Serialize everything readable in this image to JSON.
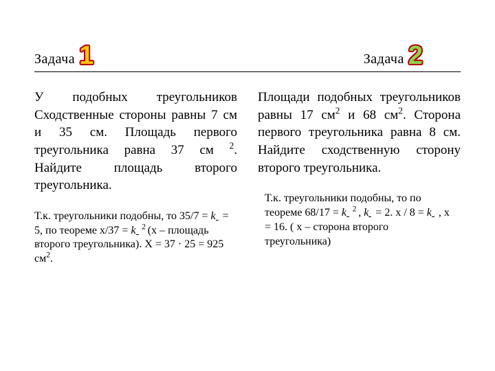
{
  "header": {
    "label1": "Задача",
    "num1": "1",
    "label2": "Задача",
    "num2": "2"
  },
  "styling": {
    "slide_width": 720,
    "slide_height": 540,
    "body_font": "Times New Roman",
    "number_font": "Arial",
    "number_fontsize": 38,
    "number1_fill": "#fec20c",
    "number2_fill": "#8fd14f",
    "number_stroke": "#b00000",
    "header_fontsize": 20,
    "problem_fontsize": 19,
    "solution_fontsize": 16,
    "text_color": "#000000",
    "line_color": "#000000",
    "background": "#ffffff",
    "columns_gap": 30,
    "text_align_problem": "justify"
  },
  "problems": {
    "p1": {
      "text_pre": "У подобных треугольников Сходственные стороны равны 7 см и 35 см. Площадь первого треугольника равна 37 см ",
      "sup1": "2",
      "text_post": ". Найдите площадь второго треугольника."
    },
    "p2": {
      "t1": "Площади подобных треугольников равны 17 см",
      "s1": "2",
      "t2": " и 68 см",
      "s2": "2",
      "t3": ". Сторона первого треугольника равна 8 см. Найдите сходственную сторону второго треугольника."
    }
  },
  "solutions": {
    "s1": {
      "a": "Т.к. треугольники подобны, то 35/7 = ",
      "k1": "k",
      "b": " = 5, по теореме х/37 = ",
      "k2": "k",
      "sup": " 2 ",
      "c": "(х – площадь второго треугольника). Х = 37 · 25 = 925 см",
      "sup2": "2",
      "d": "."
    },
    "s2": {
      "a": "Т.к. треугольники подобны, то по теореме 68/17 = ",
      "k1": "k",
      "sup1": " 2 ",
      "b": ", ",
      "k2": "k",
      "c": "  =  2.   х / 8 = ",
      "k3": "k",
      "d": " , х = 16. ( х – сторона второго треугольника)"
    }
  }
}
